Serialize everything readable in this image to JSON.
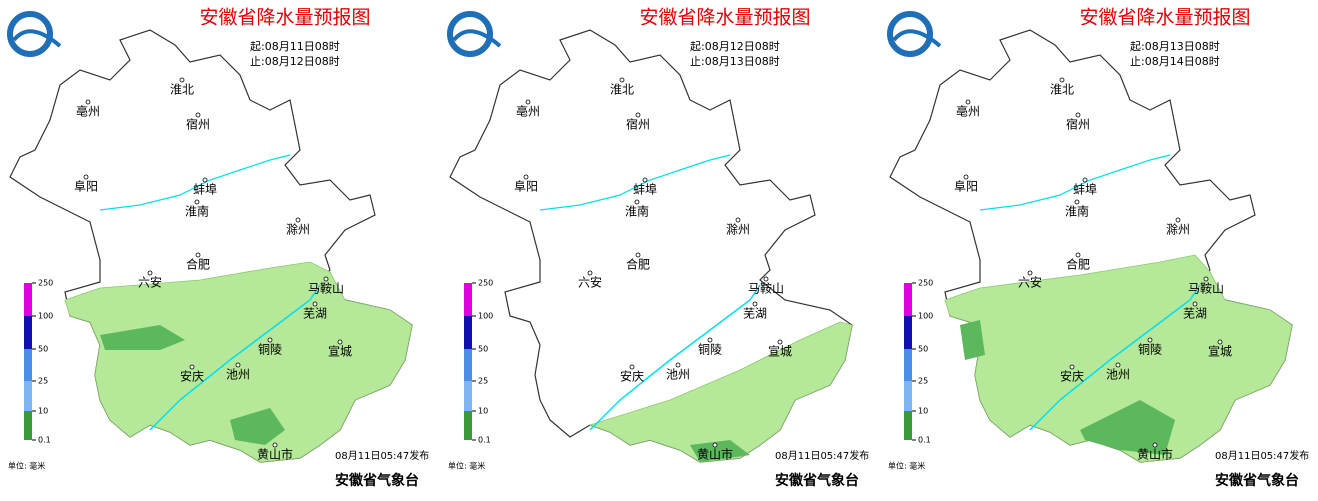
{
  "panels": [
    {
      "title": "安徽省降水量预报图",
      "start": "起:08月11日08时",
      "end": "止:08月12日08时",
      "released": "08月11日05:47发布"
    },
    {
      "title": "安徽省降水量预报图",
      "start": "起:08月12日08时",
      "end": "止:08月13日08时",
      "released": "08月11日05:47发布"
    },
    {
      "title": "安徽省降水量预报图",
      "start": "起:08月13日08时",
      "end": "止:08月14日08时",
      "released": "08月11日05:47发布"
    }
  ],
  "cities": [
    "亳州",
    "淮北",
    "宿州",
    "阜阳",
    "蚌埠",
    "淮南",
    "滁州",
    "六安",
    "合肥",
    "马鞍山",
    "芜湖",
    "铜陵",
    "宣城",
    "安庆",
    "池州",
    "黄山市"
  ],
  "legend": {
    "ticks": [
      250,
      100,
      50,
      25,
      10,
      0.1
    ],
    "unit": "单位: 毫米"
  },
  "agency": "安徽省气象台"
}
